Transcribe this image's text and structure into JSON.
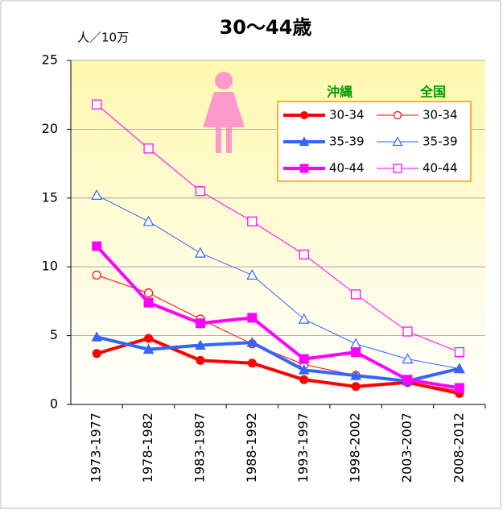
{
  "chart_data": {
    "type": "line",
    "title": "30〜44歳",
    "y_label": "人／10万",
    "categories": [
      "1973-1977",
      "1978-1982",
      "1983-1987",
      "1988-1992",
      "1993-1997",
      "1998-2002",
      "2003-2007",
      "2008-2012"
    ],
    "ylim": [
      0,
      25
    ],
    "yticks": [
      0,
      5,
      10,
      15,
      20,
      25
    ],
    "grid": true,
    "legend_groups": [
      "沖縄",
      "全国"
    ],
    "series": [
      {
        "name": "30-34",
        "group": "沖縄",
        "color": "#ff0000",
        "marker": "circle",
        "filled": true,
        "line_width": 4,
        "values": [
          3.7,
          4.8,
          3.2,
          3.0,
          1.8,
          1.3,
          1.6,
          0.8
        ]
      },
      {
        "name": "35-39",
        "group": "沖縄",
        "color": "#3366ff",
        "marker": "triangle",
        "filled": true,
        "line_width": 4,
        "values": [
          4.9,
          4.0,
          4.3,
          4.5,
          2.5,
          2.1,
          1.7,
          2.6
        ]
      },
      {
        "name": "40-44",
        "group": "沖縄",
        "color": "#ff00ff",
        "marker": "square",
        "filled": true,
        "line_width": 4,
        "values": [
          11.5,
          7.4,
          5.9,
          6.3,
          3.3,
          3.8,
          1.8,
          1.2
        ]
      },
      {
        "name": "30-34",
        "group": "全国",
        "color": "#ff0000",
        "marker": "circle",
        "filled": false,
        "line_width": 1,
        "values": [
          9.4,
          8.1,
          6.2,
          4.4,
          2.9,
          2.1,
          1.6,
          1.0
        ]
      },
      {
        "name": "35-39",
        "group": "全国",
        "color": "#3366ff",
        "marker": "triangle",
        "filled": false,
        "line_width": 1,
        "values": [
          15.2,
          13.3,
          11.0,
          9.4,
          6.2,
          4.4,
          3.3,
          2.6
        ]
      },
      {
        "name": "40-44",
        "group": "全国",
        "color": "#ff00ff",
        "marker": "square",
        "filled": false,
        "line_width": 1,
        "values": [
          21.8,
          18.6,
          15.5,
          13.3,
          10.9,
          8.0,
          5.3,
          3.8
        ]
      }
    ]
  }
}
